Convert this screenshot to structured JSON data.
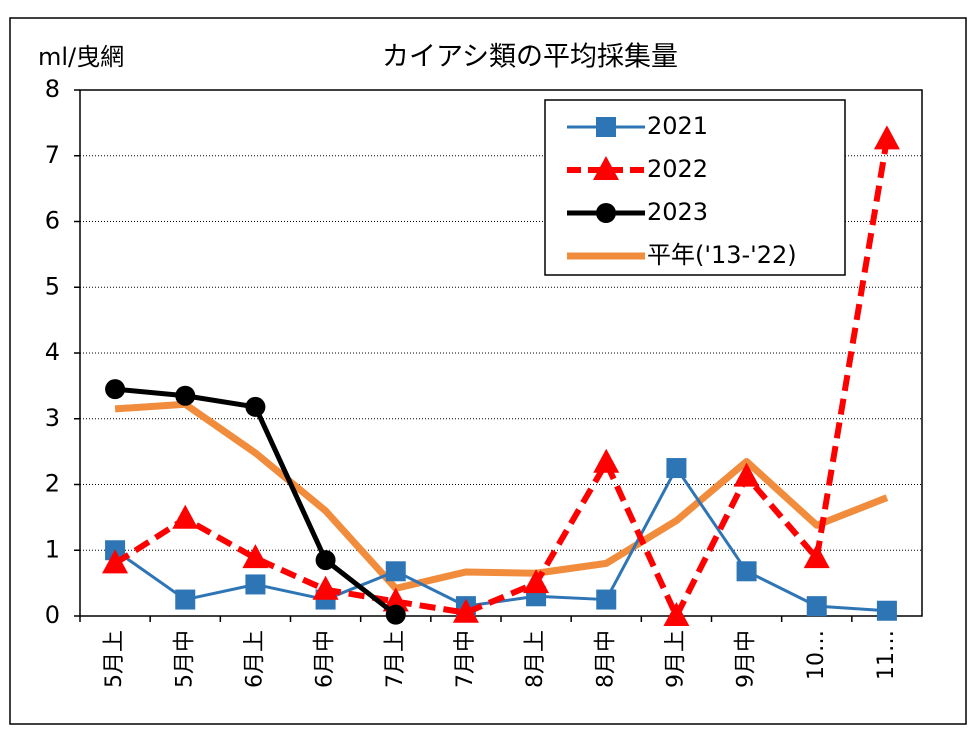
{
  "chart_data": {
    "type": "line",
    "title": "カイアシ類の平均採集量",
    "y_label": "ml/曳網",
    "categories": [
      "5月上",
      "5月中",
      "6月上",
      "6月中",
      "7月上",
      "7月中",
      "8月上",
      "8月中",
      "9月上",
      "9月中",
      "10…",
      "11…"
    ],
    "series": [
      {
        "name": "2021",
        "color": "#2e75b6",
        "marker": "square",
        "dashed": false,
        "width": 3,
        "values": [
          1.0,
          0.25,
          0.48,
          0.25,
          0.68,
          0.15,
          0.3,
          0.25,
          2.25,
          0.68,
          0.15,
          0.08
        ]
      },
      {
        "name": "2022",
        "color": "#ff0000",
        "marker": "triangle",
        "dashed": true,
        "width": 6,
        "values": [
          0.8,
          1.48,
          0.88,
          0.4,
          0.22,
          0.05,
          0.5,
          2.33,
          0.0,
          2.12,
          0.88,
          7.25
        ]
      },
      {
        "name": "2023",
        "color": "#000000",
        "marker": "circle",
        "dashed": false,
        "width": 5,
        "values": [
          3.45,
          3.35,
          3.18,
          0.85,
          0.02,
          null,
          null,
          null,
          null,
          null,
          null,
          null
        ]
      },
      {
        "name": "平年('13-'22)",
        "color": "#f08c3c",
        "marker": "none",
        "dashed": false,
        "width": 7,
        "values": [
          3.15,
          3.22,
          2.48,
          1.6,
          0.42,
          0.67,
          0.65,
          0.8,
          1.45,
          2.35,
          1.38,
          1.8
        ]
      }
    ],
    "ylim": [
      0,
      8
    ],
    "yticks": [
      0,
      1,
      2,
      3,
      4,
      5,
      6,
      7,
      8
    ],
    "grid": true,
    "legend": "upper right"
  }
}
